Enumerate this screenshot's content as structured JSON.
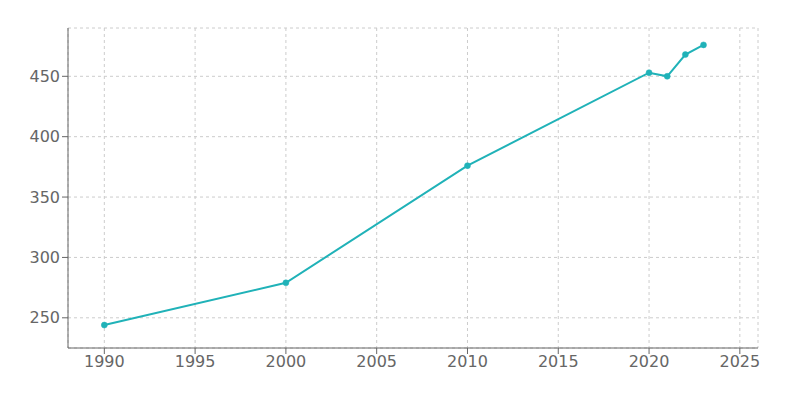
{
  "chart_data": {
    "type": "line",
    "x": [
      1990,
      2000,
      2010,
      2020,
      2021,
      2022,
      2023
    ],
    "values": [
      244,
      279,
      376,
      453,
      450,
      468,
      476
    ],
    "color": "#20b2b8",
    "marker": "circle",
    "xlim": [
      1988,
      2026
    ],
    "xticks": [
      1990,
      1995,
      2000,
      2005,
      2010,
      2015,
      2020,
      2025
    ],
    "ylim": [
      225,
      490
    ],
    "yticks": [
      250,
      300,
      350,
      400,
      450
    ],
    "grid": true
  }
}
